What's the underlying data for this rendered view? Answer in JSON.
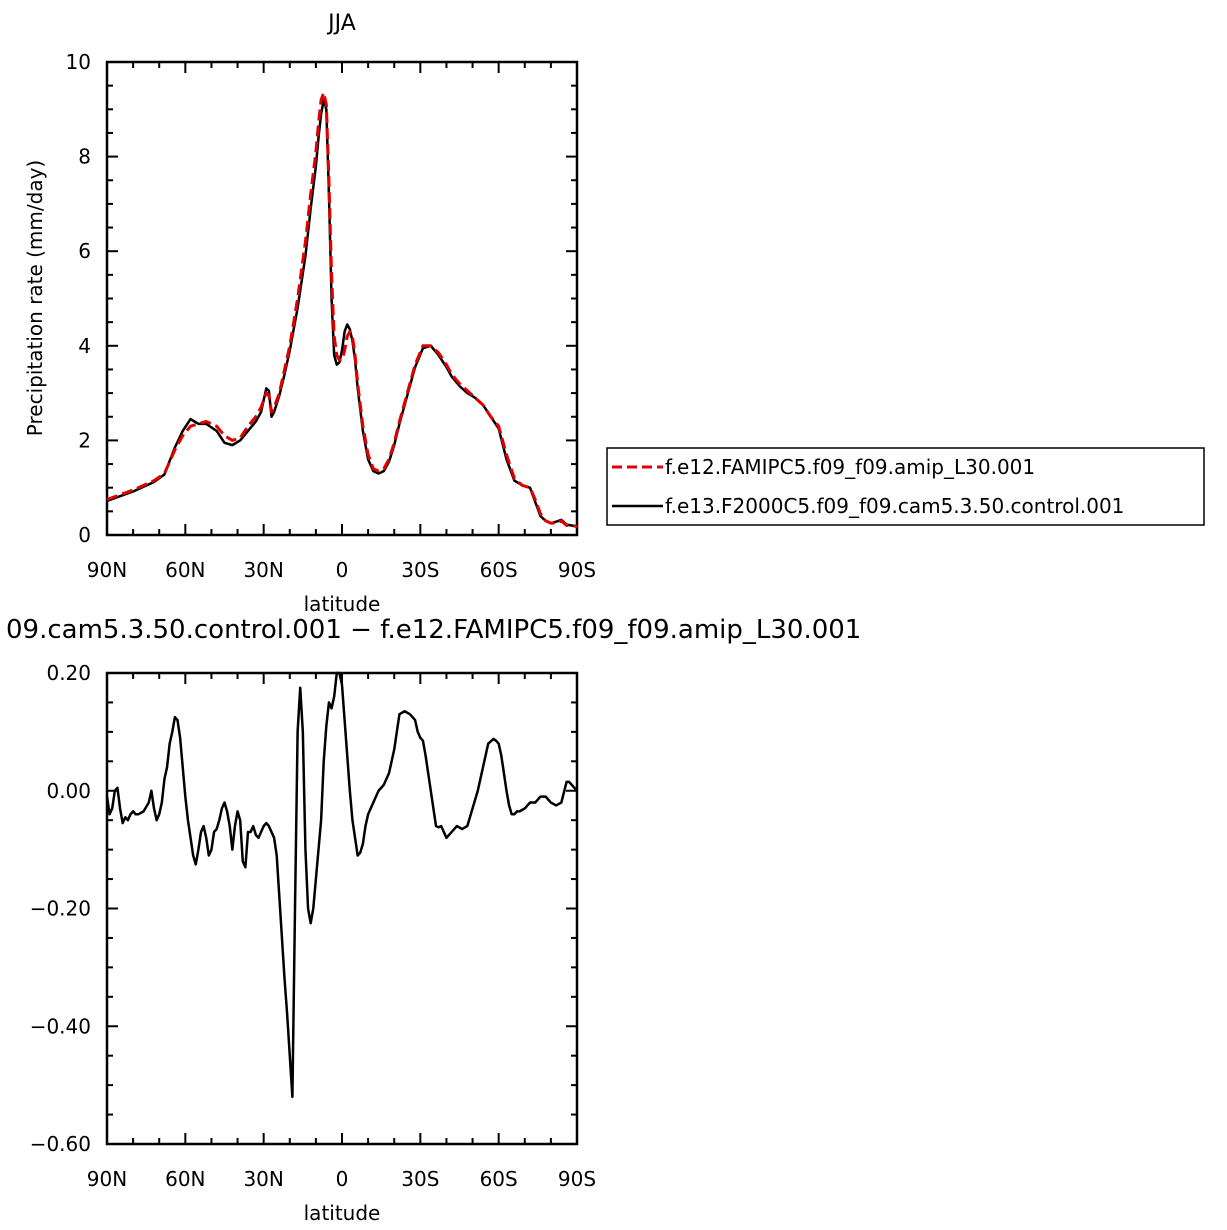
{
  "chart_data": [
    {
      "type": "line",
      "title": "JJA",
      "xlabel": "latitude",
      "ylabel": "Precipitation rate (mm/day)",
      "xlim": [
        90,
        -90
      ],
      "ylim": [
        0,
        10
      ],
      "xticks": [
        90,
        60,
        30,
        0,
        -30,
        -60,
        -90
      ],
      "xtick_labels": [
        "90N",
        "60N",
        "30N",
        "0",
        "30S",
        "60S",
        "90S"
      ],
      "yticks": [
        0,
        2,
        4,
        6,
        8,
        10
      ],
      "ytick_labels": [
        "0",
        "2",
        "4",
        "6",
        "8",
        "10"
      ],
      "legend_position": "right",
      "series": [
        {
          "name": "f.e12.FAMIPC5.f09_f09.amip_L30.001",
          "color": "#e00000",
          "dash": "dashed",
          "x": [
            90,
            85,
            80,
            76,
            72,
            68,
            64,
            61,
            58,
            55,
            52,
            48,
            45,
            42,
            39,
            36,
            33,
            31,
            29,
            28,
            27,
            26,
            24,
            22,
            20,
            17,
            14,
            12,
            10,
            9,
            8,
            7,
            6,
            5,
            4,
            3,
            2,
            1,
            0,
            -1,
            -2,
            -3,
            -4,
            -5,
            -6,
            -8,
            -10,
            -12,
            -14,
            -16,
            -18,
            -20,
            -22,
            -25,
            -28,
            -31,
            -34,
            -37,
            -40,
            -42,
            -45,
            -48,
            -51,
            -54,
            -57,
            -60,
            -63,
            -66,
            -69,
            -72,
            -74,
            -76,
            -78,
            -80,
            -82,
            -84,
            -86,
            -88,
            -90
          ],
          "y": [
            0.75,
            0.85,
            0.95,
            1.05,
            1.15,
            1.3,
            1.8,
            2.1,
            2.3,
            2.35,
            2.4,
            2.3,
            2.1,
            2.0,
            2.05,
            2.3,
            2.5,
            2.7,
            3.0,
            2.95,
            2.6,
            2.7,
            3.0,
            3.5,
            4.0,
            5.0,
            6.2,
            7.2,
            8.1,
            8.7,
            9.2,
            9.35,
            9.1,
            7.5,
            5.5,
            4.2,
            3.8,
            3.7,
            3.7,
            3.9,
            4.2,
            4.3,
            4.2,
            3.8,
            3.2,
            2.3,
            1.7,
            1.4,
            1.35,
            1.4,
            1.6,
            1.95,
            2.4,
            3.0,
            3.6,
            4.0,
            4.0,
            3.85,
            3.6,
            3.4,
            3.2,
            3.05,
            2.9,
            2.75,
            2.5,
            2.3,
            1.7,
            1.2,
            1.05,
            1.0,
            0.75,
            0.45,
            0.3,
            0.25,
            0.25,
            0.3,
            0.2,
            0.2,
            0.18
          ]
        },
        {
          "name": "f.e13.F2000C5.f09_f09.cam5.3.50.control.001",
          "color": "#000000",
          "dash": "solid",
          "x": [
            90,
            85,
            80,
            76,
            72,
            68,
            64,
            61,
            58,
            55,
            52,
            48,
            45,
            42,
            39,
            36,
            33,
            31,
            29,
            28,
            27,
            26,
            24,
            22,
            20,
            17,
            14,
            12,
            10,
            9,
            8,
            7,
            6,
            5,
            4,
            3,
            2,
            1,
            0,
            -1,
            -2,
            -3,
            -4,
            -5,
            -6,
            -8,
            -10,
            -12,
            -14,
            -16,
            -18,
            -20,
            -22,
            -25,
            -28,
            -31,
            -34,
            -37,
            -40,
            -42,
            -45,
            -48,
            -51,
            -54,
            -57,
            -60,
            -63,
            -66,
            -69,
            -72,
            -74,
            -76,
            -78,
            -80,
            -82,
            -84,
            -86,
            -88,
            -90
          ],
          "y": [
            0.72,
            0.82,
            0.92,
            1.02,
            1.12,
            1.28,
            1.85,
            2.2,
            2.45,
            2.35,
            2.35,
            2.2,
            1.95,
            1.9,
            2.0,
            2.2,
            2.4,
            2.6,
            3.1,
            3.05,
            2.5,
            2.6,
            2.95,
            3.4,
            3.9,
            4.8,
            5.9,
            6.9,
            7.8,
            8.4,
            8.9,
            9.2,
            9.0,
            7.2,
            5.0,
            3.8,
            3.6,
            3.65,
            3.9,
            4.3,
            4.45,
            4.35,
            4.1,
            3.7,
            3.1,
            2.2,
            1.6,
            1.35,
            1.3,
            1.35,
            1.55,
            1.9,
            2.35,
            2.95,
            3.55,
            3.95,
            4.0,
            3.8,
            3.55,
            3.35,
            3.15,
            3.0,
            2.9,
            2.75,
            2.5,
            2.25,
            1.6,
            1.15,
            1.05,
            1.0,
            0.7,
            0.4,
            0.3,
            0.25,
            0.28,
            0.32,
            0.22,
            0.2,
            0.18
          ]
        }
      ]
    },
    {
      "type": "line",
      "title": "09.cam5.3.50.control.001 − f.e12.FAMIPC5.f09_f09.amip_L30.001",
      "xlabel": "latitude",
      "ylabel": "",
      "xlim": [
        90,
        -90
      ],
      "ylim": [
        -0.6,
        0.2
      ],
      "xticks": [
        90,
        60,
        30,
        0,
        -30,
        -60,
        -90
      ],
      "xtick_labels": [
        "90N",
        "60N",
        "30N",
        "0",
        "30S",
        "60S",
        "90S"
      ],
      "yticks": [
        -0.6,
        -0.4,
        -0.2,
        0,
        0.2
      ],
      "ytick_labels": [
        "−0.60",
        "−0.40",
        "−0.20",
        "0.00",
        "0.20"
      ],
      "series": [
        {
          "name": "",
          "color": "#000000",
          "dash": "solid",
          "x": [
            90,
            89,
            88,
            87,
            86,
            85,
            84,
            83,
            82,
            81,
            80,
            79,
            78,
            76,
            74,
            73,
            72,
            71,
            70,
            69,
            68,
            67,
            66,
            65,
            64,
            63,
            62,
            61,
            60,
            59,
            58,
            57,
            56,
            55,
            54,
            53,
            52,
            51,
            50,
            49,
            48,
            47,
            46,
            45,
            44,
            43,
            42,
            41,
            40,
            39,
            38,
            37,
            36,
            35,
            34,
            33,
            32,
            31,
            30,
            29,
            28,
            27,
            26,
            25,
            24,
            23,
            22,
            21,
            20,
            19,
            18,
            17,
            16,
            15,
            14,
            13,
            12,
            11,
            10,
            9,
            8,
            7,
            6,
            5,
            4,
            3,
            2,
            1,
            0,
            -1,
            -2,
            -3,
            -4,
            -5,
            -6,
            -7,
            -8,
            -9,
            -10,
            -12,
            -14,
            -16,
            -18,
            -20,
            -22,
            -24,
            -26,
            -28,
            -29,
            -30,
            -31,
            -32,
            -33,
            -34,
            -35,
            -36,
            -37,
            -38,
            -40,
            -42,
            -44,
            -46,
            -48,
            -50,
            -52,
            -54,
            -56,
            -58,
            -59,
            -60,
            -61,
            -62,
            -63,
            -64,
            -65,
            -66,
            -67,
            -68,
            -70,
            -72,
            -74,
            -76,
            -78,
            -80,
            -82,
            -84,
            -86,
            -87,
            -88,
            -89,
            -90
          ],
          "y": [
            -0.01,
            -0.04,
            -0.03,
            0.0,
            0.005,
            -0.03,
            -0.055,
            -0.045,
            -0.05,
            -0.04,
            -0.035,
            -0.04,
            -0.04,
            -0.035,
            -0.02,
            0.0,
            -0.03,
            -0.05,
            -0.04,
            -0.02,
            0.02,
            0.04,
            0.08,
            0.1,
            0.125,
            0.12,
            0.09,
            0.04,
            -0.01,
            -0.05,
            -0.08,
            -0.11,
            -0.125,
            -0.1,
            -0.07,
            -0.06,
            -0.08,
            -0.11,
            -0.1,
            -0.07,
            -0.065,
            -0.05,
            -0.03,
            -0.02,
            -0.035,
            -0.06,
            -0.1,
            -0.06,
            -0.035,
            -0.05,
            -0.12,
            -0.13,
            -0.07,
            -0.07,
            -0.06,
            -0.075,
            -0.08,
            -0.07,
            -0.06,
            -0.055,
            -0.06,
            -0.07,
            -0.08,
            -0.11,
            -0.18,
            -0.25,
            -0.32,
            -0.38,
            -0.45,
            -0.52,
            -0.2,
            0.1,
            0.175,
            0.1,
            -0.1,
            -0.2,
            -0.225,
            -0.2,
            -0.15,
            -0.1,
            -0.05,
            0.05,
            0.11,
            0.15,
            0.14,
            0.16,
            0.2,
            0.2,
            0.18,
            0.12,
            0.06,
            0.0,
            -0.05,
            -0.08,
            -0.11,
            -0.105,
            -0.09,
            -0.06,
            -0.04,
            -0.02,
            0.0,
            0.01,
            0.03,
            0.07,
            0.13,
            0.135,
            0.13,
            0.12,
            0.1,
            0.09,
            0.085,
            0.06,
            0.03,
            0.0,
            -0.03,
            -0.06,
            -0.062,
            -0.06,
            -0.08,
            -0.07,
            -0.06,
            -0.065,
            -0.06,
            -0.03,
            0.0,
            0.04,
            0.08,
            0.088,
            0.085,
            0.08,
            0.06,
            0.03,
            0.0,
            -0.025,
            -0.04,
            -0.04,
            -0.035,
            -0.035,
            -0.03,
            -0.02,
            -0.02,
            -0.01,
            -0.01,
            -0.02,
            -0.025,
            -0.02,
            0.015,
            0.015,
            0.01,
            0.005,
            0.0
          ]
        }
      ]
    }
  ]
}
